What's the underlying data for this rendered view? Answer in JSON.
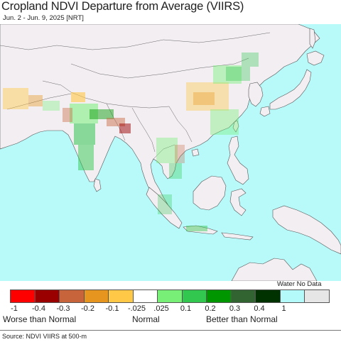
{
  "title": "Cropland NDVI Departure from Average (VIIRS)",
  "subtitle": "Jun. 2 - Jun. 9, 2025 [NRT]",
  "colors": {
    "ocean": "#b8fafa",
    "land": "#f2eef2",
    "border": "#555555"
  },
  "legend": {
    "water_no_data_label": "Water No Data",
    "swatches": [
      {
        "color": "#ff0000",
        "tick": "-1"
      },
      {
        "color": "#9b0000",
        "tick": "-0.4"
      },
      {
        "color": "#c8643c",
        "tick": "-0.3"
      },
      {
        "color": "#e6961e",
        "tick": "-0.2"
      },
      {
        "color": "#ffc846",
        "tick": "-0.1"
      },
      {
        "color": "#ffffff",
        "tick": "-.025"
      },
      {
        "color": "#78f078",
        "tick": ".025"
      },
      {
        "color": "#32c850",
        "tick": "0.1"
      },
      {
        "color": "#009600",
        "tick": "0.2"
      },
      {
        "color": "#326432",
        "tick": "0.3"
      },
      {
        "color": "#003200",
        "tick": "0.4"
      },
      {
        "color": "#b4fafa",
        "tick": "1"
      },
      {
        "color": "#e6e6e6",
        "tick": ""
      }
    ],
    "worse_label": "Worse than Normal",
    "normal_label": "Normal",
    "better_label": "Better than Normal"
  },
  "source": "Source: NDVI VIIRS at 500-m"
}
